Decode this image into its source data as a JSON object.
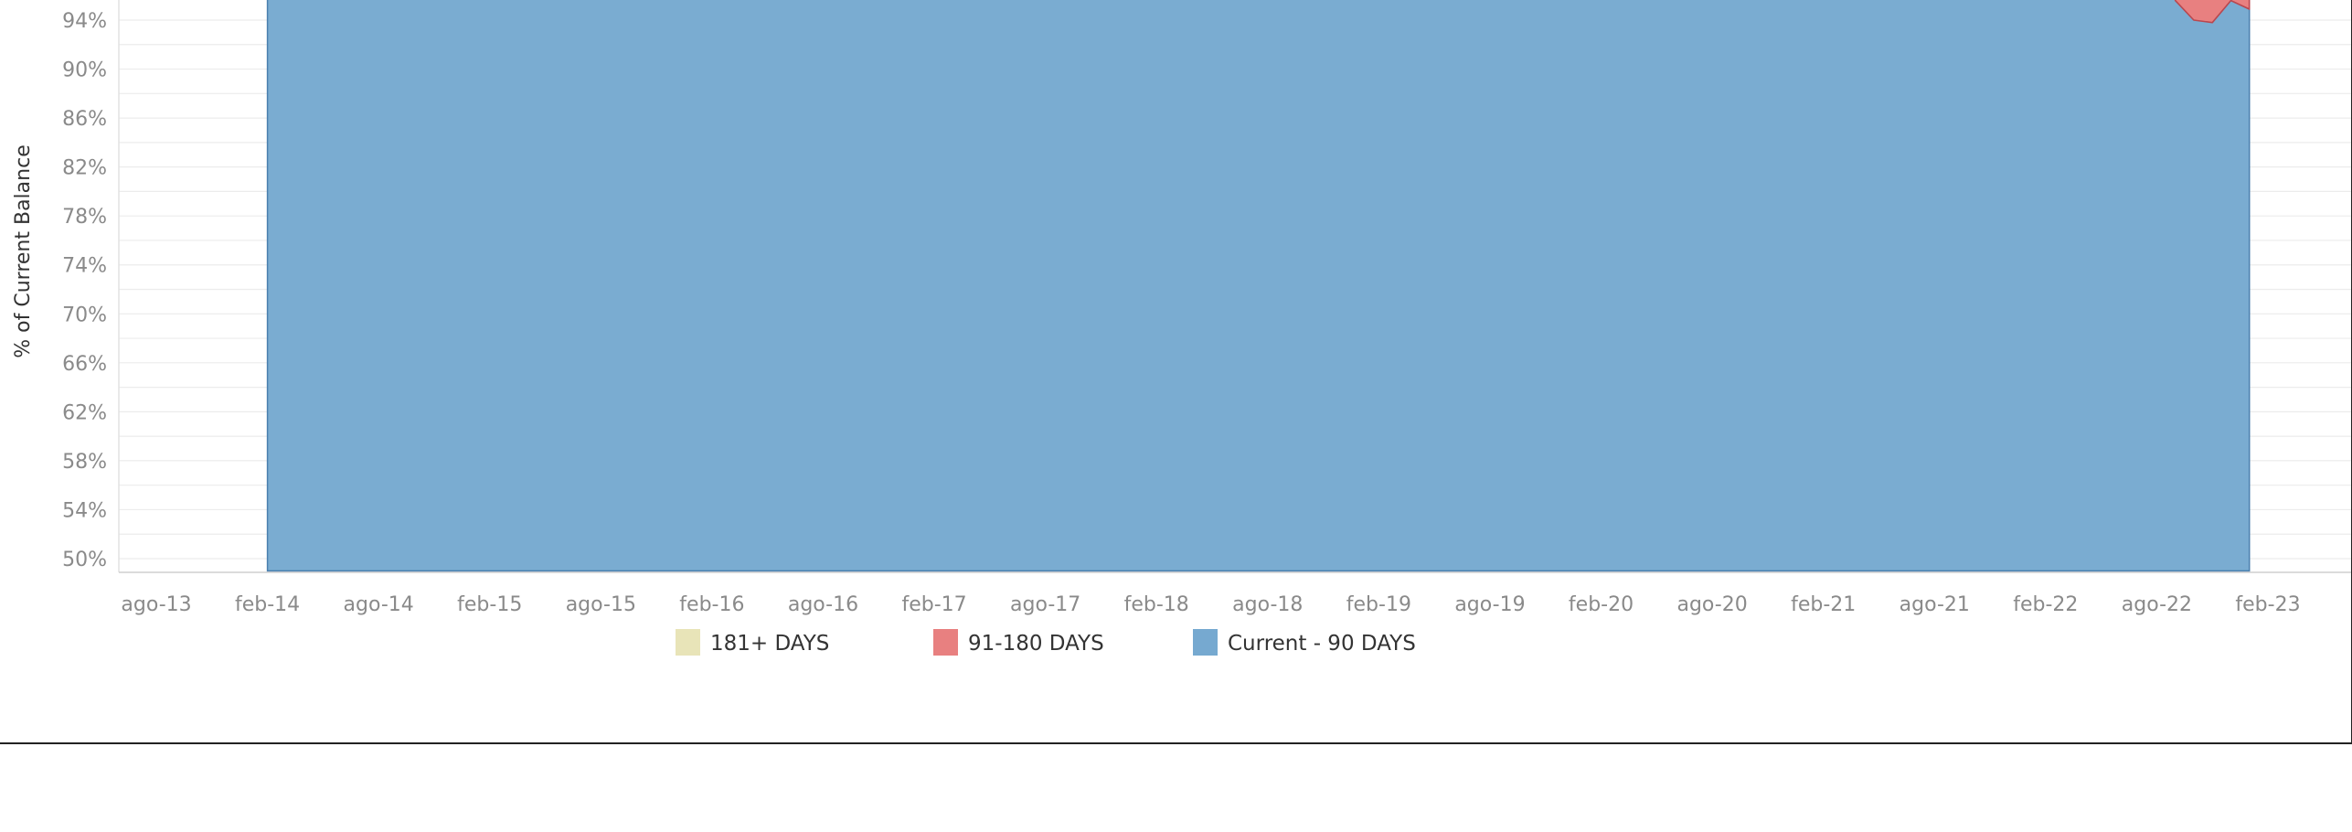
{
  "chart_data": {
    "type": "area",
    "title": "",
    "xlabel": "",
    "ylabel": "% of Current Balance",
    "y_tick_labels": [
      "50%",
      "54%",
      "58%",
      "62%",
      "66%",
      "70%",
      "74%",
      "78%",
      "82%",
      "86%",
      "90%",
      "94%"
    ],
    "y_ticks": [
      50,
      54,
      58,
      62,
      66,
      70,
      74,
      78,
      82,
      86,
      90,
      94
    ],
    "x_tick_labels": [
      "ago-13",
      "feb-14",
      "ago-14",
      "feb-15",
      "ago-15",
      "feb-16",
      "ago-16",
      "feb-17",
      "ago-17",
      "feb-18",
      "ago-18",
      "feb-19",
      "ago-19",
      "feb-20",
      "ago-20",
      "feb-21",
      "ago-21",
      "feb-22",
      "ago-22",
      "feb-23"
    ],
    "x_ticks": [
      "2013-08",
      "2014-02",
      "2014-08",
      "2015-02",
      "2015-08",
      "2016-02",
      "2016-08",
      "2017-02",
      "2017-08",
      "2018-02",
      "2018-08",
      "2019-02",
      "2019-08",
      "2020-02",
      "2020-08",
      "2021-02",
      "2021-08",
      "2022-02",
      "2022-08",
      "2023-02"
    ],
    "x_range": [
      "2013-07",
      "2023-07"
    ],
    "ylim": [
      49,
      96
    ],
    "grid": true,
    "legend_position": "bottom",
    "series": [
      {
        "name": "181+ DAYS",
        "color": "#e8e4b8",
        "points": []
      },
      {
        "name": "91-180 DAYS",
        "color": "#e88080",
        "points": [
          {
            "x": "2022-09",
            "y": 95.6
          },
          {
            "x": "2022-10",
            "y": 94.0
          },
          {
            "x": "2022-11",
            "y": 93.8
          },
          {
            "x": "2022-12",
            "y": 95.6
          },
          {
            "x": "2023-01",
            "y": 94.9
          }
        ]
      },
      {
        "name": "Current - 90 DAYS",
        "color": "#76a9d0",
        "x_start": "2014-02",
        "x_end": "2023-01",
        "baseline": 49.0
      }
    ]
  }
}
